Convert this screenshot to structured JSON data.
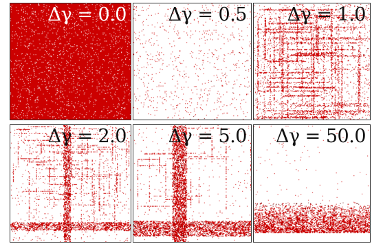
{
  "figure": {
    "dot_color": "#cc0000",
    "background_color": "#ffffff",
    "panels": [
      {
        "label": "Δγ = 0.0",
        "description_key": "full-density",
        "label_color": "#ffffff"
      },
      {
        "label": "Δγ = 0.5",
        "description_key": "sparse",
        "label_color": "#111111"
      },
      {
        "label": "Δγ = 1.0",
        "description_key": "line-clusters",
        "label_color": "#111111"
      },
      {
        "label": "Δγ = 2.0",
        "description_key": "cross-cluster",
        "label_color": "#111111"
      },
      {
        "label": "Δγ = 5.0",
        "description_key": "strong-cross",
        "label_color": "#111111"
      },
      {
        "label": "Δγ = 50.0",
        "description_key": "bottom-band",
        "label_color": "#111111"
      }
    ]
  }
}
